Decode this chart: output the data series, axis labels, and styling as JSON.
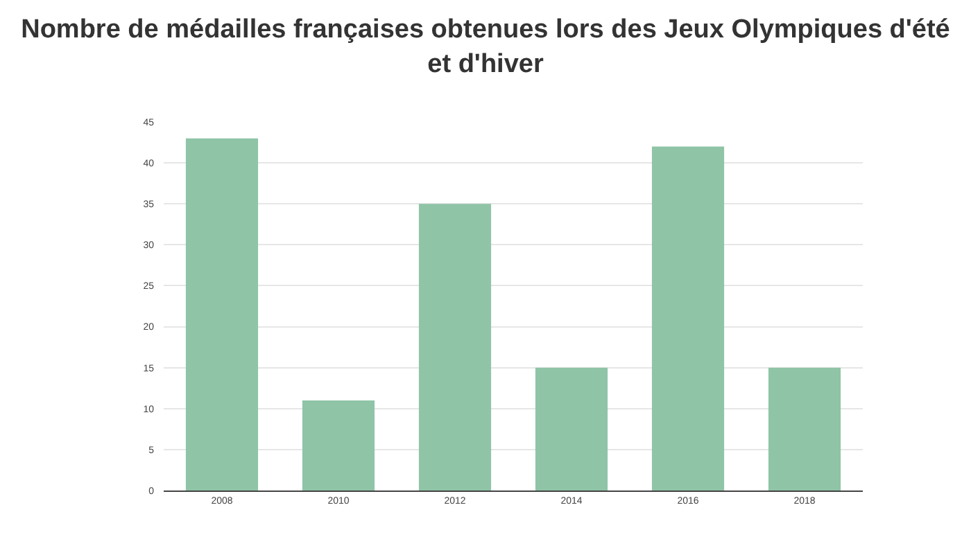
{
  "chart_data": {
    "type": "bar",
    "title": "Nombre de médailles françaises obtenues lors des Jeux Olympiques d'été et d'hiver",
    "categories": [
      "2008",
      "2010",
      "2012",
      "2014",
      "2016",
      "2018"
    ],
    "values": [
      43,
      11,
      35,
      15,
      42,
      15
    ],
    "color": "#8fc4a7",
    "ylim": [
      0,
      45
    ],
    "yticks": [
      0,
      5,
      10,
      15,
      20,
      25,
      30,
      35,
      40,
      45
    ],
    "grid": "y",
    "legend": false
  }
}
